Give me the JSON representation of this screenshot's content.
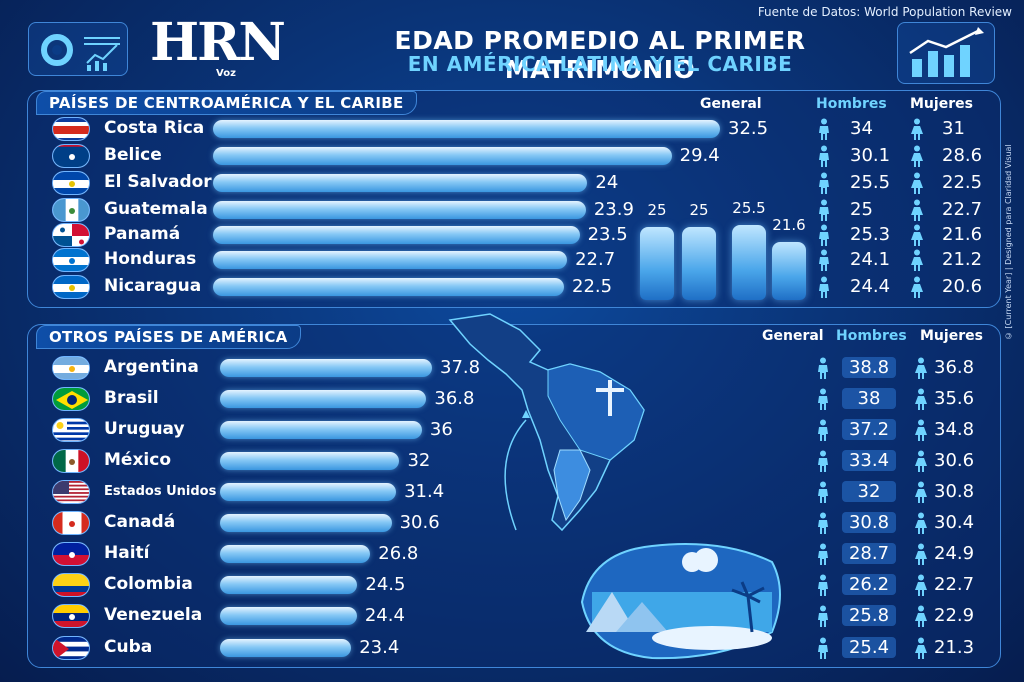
{
  "header": {
    "logo": "HRN",
    "logo_sub": "Voz",
    "title_line1": "EDAD PROMEDIO AL PRIMER MATRIMONIO",
    "title_line2": "EN AMÉRICA LATINA Y EL CARIBE",
    "source": "Fuente de Datos: World Population Review",
    "credit": "© [Current Year] | Designed para Claridad Visual"
  },
  "sections": {
    "central": {
      "title": "PAÍSES DE CENTROAMÉRICA Y EL CARIBE",
      "col_general": "General",
      "col_men": "Hombres",
      "col_women": "Mujeres"
    },
    "others": {
      "title": "OTROS PAÍSES DE AMÉRICA",
      "col_general": "General",
      "col_men": "Hombres",
      "col_women": "Mujeres"
    }
  },
  "icons": {
    "male": "male-person-icon",
    "female": "female-person-icon"
  },
  "colors": {
    "accent": "#6fd3ff",
    "bar": "#4aa6ea",
    "background": "#0a3478"
  },
  "chart_data": [
    {
      "type": "bar",
      "orientation": "horizontal",
      "title": "PAÍSES DE CENTROAMÉRICA Y EL CARIBE",
      "categories": [
        "Costa Rica",
        "Belice",
        "El Salvador",
        "Guatemala",
        "Panamá",
        "Honduras",
        "Nicaragua"
      ],
      "series": [
        {
          "name": "General",
          "values": [
            32.5,
            29.4,
            24,
            23.9,
            23.5,
            22.7,
            22.5
          ]
        },
        {
          "name": "Hombres",
          "values": [
            34,
            30.1,
            25.5,
            25,
            25.3,
            24.1,
            24.4
          ]
        },
        {
          "name": "Mujeres",
          "values": [
            31,
            28.6,
            22.5,
            22.7,
            21.6,
            21.2,
            20.6
          ]
        }
      ]
    },
    {
      "type": "bar",
      "orientation": "vertical",
      "values": [
        25,
        25,
        25.5,
        21.6
      ]
    },
    {
      "type": "bar",
      "orientation": "horizontal",
      "title": "OTROS PAÍSES DE AMÉRICA",
      "categories": [
        "Argentina",
        "Brasil",
        "Uruguay",
        "México",
        "Estados Unidos",
        "Canadá",
        "Haití",
        "Colombia",
        "Venezuela",
        "Cuba"
      ],
      "series": [
        {
          "name": "General",
          "values": [
            37.8,
            36.8,
            36,
            32,
            31.4,
            30.6,
            26.8,
            24.5,
            24.4,
            23.4
          ]
        },
        {
          "name": "Hombres",
          "values": [
            38.8,
            38,
            37.2,
            33.4,
            32,
            30.8,
            28.7,
            26.2,
            25.8,
            25.4
          ]
        },
        {
          "name": "Mujeres",
          "values": [
            36.8,
            35.6,
            34.8,
            30.6,
            30.8,
            30.4,
            24.9,
            22.7,
            22.9,
            21.3
          ]
        }
      ]
    }
  ]
}
